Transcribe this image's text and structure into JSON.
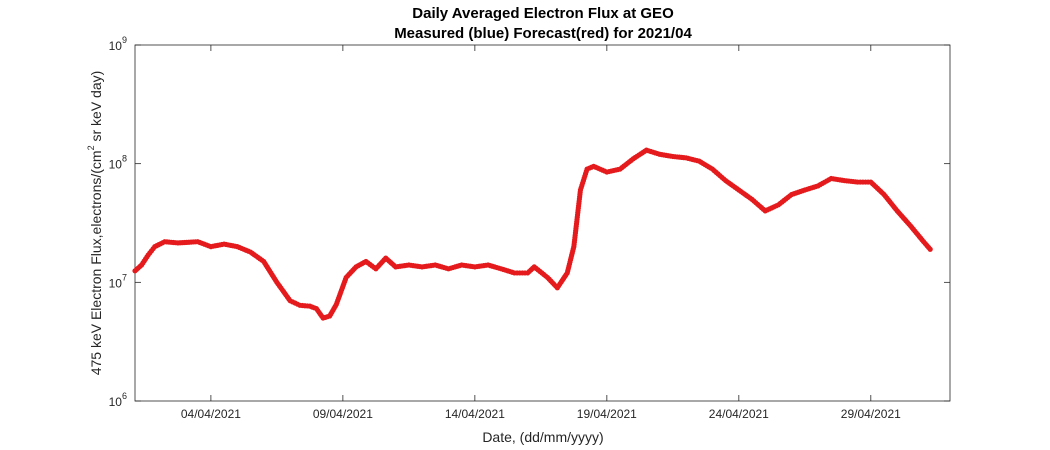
{
  "chart_data": {
    "type": "scatter",
    "title": "Daily Averaged Electron Flux at GEO",
    "subtitle": "Measured (blue) Forecast(red) for 2021/04",
    "xlabel": "Date, (dd/mm/yyyy)",
    "ylabel_text": "475 keV Electron Flux,electrons/(cm",
    "ylabel_sup": "2",
    "ylabel_tail": " sr keV day)",
    "y_scale": "log",
    "ylim": [
      1000000,
      1000000000
    ],
    "xlim": [
      "2021-04-01T03:00",
      "2021-05-02T00:00"
    ],
    "grid": false,
    "x_ticks": [
      {
        "date": "2021-04-04",
        "label": "04/04/2021"
      },
      {
        "date": "2021-04-09",
        "label": "09/04/2021"
      },
      {
        "date": "2021-04-14",
        "label": "14/04/2021"
      },
      {
        "date": "2021-04-19",
        "label": "19/04/2021"
      },
      {
        "date": "2021-04-24",
        "label": "24/04/2021"
      },
      {
        "date": "2021-04-29",
        "label": "29/04/2021"
      }
    ],
    "y_ticks": [
      {
        "value": 1000000,
        "base": "10",
        "exp": "6"
      },
      {
        "value": 10000000,
        "base": "10",
        "exp": "7"
      },
      {
        "value": 100000000,
        "base": "10",
        "exp": "8"
      },
      {
        "value": 1000000000,
        "base": "10",
        "exp": "9"
      }
    ],
    "series": [
      {
        "color": "#e41a1c",
        "x": [
          "2021-04-01T03:00",
          "2021-04-01T09:00",
          "2021-04-01T15:00",
          "2021-04-01T21:00",
          "2021-04-02T06:00",
          "2021-04-02T18:00",
          "2021-04-03T12:00",
          "2021-04-04T00:00",
          "2021-04-04T12:00",
          "2021-04-05T00:00",
          "2021-04-05T12:00",
          "2021-04-06T00:00",
          "2021-04-06T12:00",
          "2021-04-07T00:00",
          "2021-04-07T09:00",
          "2021-04-07T18:00",
          "2021-04-08T00:00",
          "2021-04-08T06:00",
          "2021-04-08T12:00",
          "2021-04-08T18:00",
          "2021-04-09T03:00",
          "2021-04-09T12:00",
          "2021-04-09T21:00",
          "2021-04-10T06:00",
          "2021-04-10T15:00",
          "2021-04-11T00:00",
          "2021-04-11T12:00",
          "2021-04-12T00:00",
          "2021-04-12T12:00",
          "2021-04-13T00:00",
          "2021-04-13T12:00",
          "2021-04-14T00:00",
          "2021-04-14T12:00",
          "2021-04-15T00:00",
          "2021-04-15T12:00",
          "2021-04-16T00:00",
          "2021-04-16T06:00",
          "2021-04-16T18:00",
          "2021-04-17T03:00",
          "2021-04-17T12:00",
          "2021-04-17T18:00",
          "2021-04-18T00:00",
          "2021-04-18T06:00",
          "2021-04-18T12:00",
          "2021-04-19T00:00",
          "2021-04-19T12:00",
          "2021-04-20T00:00",
          "2021-04-20T12:00",
          "2021-04-21T00:00",
          "2021-04-21T12:00",
          "2021-04-22T00:00",
          "2021-04-22T12:00",
          "2021-04-23T00:00",
          "2021-04-23T12:00",
          "2021-04-24T00:00",
          "2021-04-24T12:00",
          "2021-04-25T00:00",
          "2021-04-25T12:00",
          "2021-04-26T00:00",
          "2021-04-26T12:00",
          "2021-04-27T00:00",
          "2021-04-27T12:00",
          "2021-04-28T00:00",
          "2021-04-28T12:00",
          "2021-04-29T00:00",
          "2021-04-29T12:00",
          "2021-04-30T00:00",
          "2021-04-30T12:00",
          "2021-05-01T00:00",
          "2021-05-01T06:00"
        ],
        "y": [
          12500000,
          14000000,
          17000000,
          20000000,
          22000000,
          21500000,
          22000000,
          20000000,
          21000000,
          20000000,
          18000000,
          15000000,
          10000000,
          7000000,
          6400000,
          6300000,
          6000000,
          5000000,
          5200000,
          6500000,
          11000000,
          13500000,
          15000000,
          13000000,
          16000000,
          13500000,
          14000000,
          13500000,
          14000000,
          13000000,
          14000000,
          13500000,
          14000000,
          13000000,
          12000000,
          12000000,
          13500000,
          11000000,
          9000000,
          12000000,
          20000000,
          60000000,
          90000000,
          95000000,
          85000000,
          90000000,
          110000000,
          130000000,
          120000000,
          115000000,
          112000000,
          105000000,
          90000000,
          72000000,
          60000000,
          50000000,
          40000000,
          45000000,
          55000000,
          60000000,
          65000000,
          75000000,
          72000000,
          70000000,
          70000000,
          55000000,
          40000000,
          30000000,
          22000000,
          19000000
        ]
      }
    ]
  }
}
